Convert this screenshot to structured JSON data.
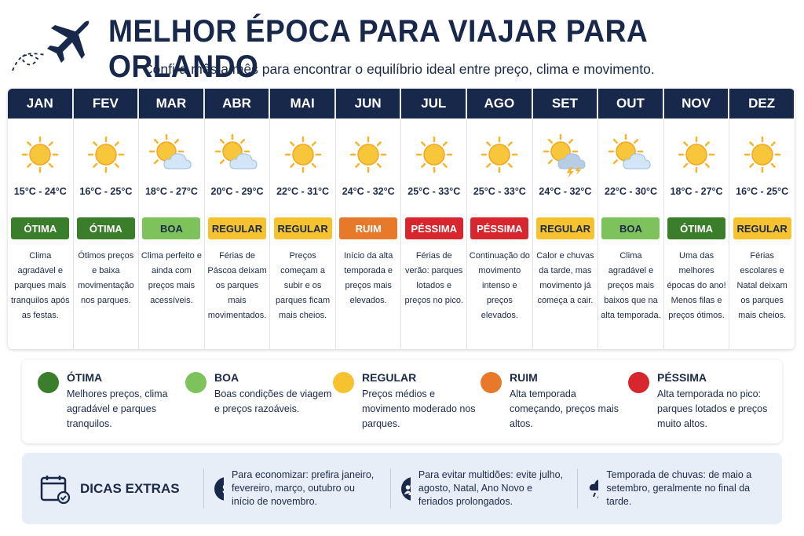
{
  "header": {
    "title": "MELHOR ÉPOCA PARA VIAJAR PARA ORLANDO",
    "subtitle": "Confira mês a mês para encontrar o equilíbrio ideal entre preço, clima e movimento."
  },
  "months": [
    {
      "month": "JAN",
      "temp": "15°C - 24°C",
      "rating": "ÓTIMA",
      "weather": "sun",
      "text": "Clima agradável e parques mais tranquilos após as festas."
    },
    {
      "month": "FEV",
      "temp": "16°C - 25°C",
      "rating": "ÓTIMA",
      "weather": "sun",
      "text": "Ótimos preços e baixa movimentação nos parques."
    },
    {
      "month": "MAR",
      "temp": "18°C - 27°C",
      "rating": "BOA",
      "weather": "sun-cloud",
      "text": "Clima perfeito e ainda com preços mais acessíveis."
    },
    {
      "month": "ABR",
      "temp": "20°C - 29°C",
      "rating": "REGULAR",
      "weather": "sun-cloud",
      "text": "Férias de Páscoa deixam os parques mais movimentados."
    },
    {
      "month": "MAI",
      "temp": "22°C - 31°C",
      "rating": "REGULAR",
      "weather": "sun",
      "text": "Preços começam a subir e os parques ficam mais cheios."
    },
    {
      "month": "JUN",
      "temp": "24°C - 32°C",
      "rating": "RUIM",
      "weather": "sun",
      "text": "Início da alta temporada e preços mais elevados."
    },
    {
      "month": "JUL",
      "temp": "25°C - 33°C",
      "rating": "PÉSSIMA",
      "weather": "sun",
      "text": "Férias de verão: parques lotados e preços no pico."
    },
    {
      "month": "AGO",
      "temp": "25°C - 33°C",
      "rating": "PÉSSIMA",
      "weather": "sun",
      "text": "Continuação do movimento intenso e preços elevados."
    },
    {
      "month": "SET",
      "temp": "24°C - 32°C",
      "rating": "REGULAR",
      "weather": "storm",
      "text": "Calor e chuvas da tarde, mas movimento já começa a cair."
    },
    {
      "month": "OUT",
      "temp": "22°C - 30°C",
      "rating": "BOA",
      "weather": "sun-cloud",
      "text": "Clima agradável e preços mais baixos que na alta temporada."
    },
    {
      "month": "NOV",
      "temp": "18°C - 27°C",
      "rating": "ÓTIMA",
      "weather": "sun",
      "text": "Uma das melhores épocas do ano! Menos filas e preços ótimos."
    },
    {
      "month": "DEZ",
      "temp": "16°C - 25°C",
      "rating": "REGULAR",
      "weather": "sun",
      "text": "Férias escolares e Natal deixam os parques mais cheios."
    }
  ],
  "legend": [
    {
      "label": "ÓTIMA",
      "color": "#3a7d2a",
      "text": "Melhores preços, clima agradável e parques tranquilos."
    },
    {
      "label": "BOA",
      "color": "#7dc25a",
      "text": "Boas condições de viagem e preços razoáveis."
    },
    {
      "label": "REGULAR",
      "color": "#f6c230",
      "text": "Preços médios e movimento moderado nos parques."
    },
    {
      "label": "RUIM",
      "color": "#e8792a",
      "text": "Alta temporada começando, preços mais altos."
    },
    {
      "label": "PÉSSIMA",
      "color": "#d8262e",
      "text": "Alta temporada no pico: parques lotados e preços muito altos."
    }
  ],
  "tips": {
    "title": "DICAS EXTRAS",
    "items": [
      "Para economizar: prefira janeiro, fevereiro, março, outubro ou início de novembro.",
      "Para evitar multidões: evite julho, agosto, Natal, Ano Novo e feriados prolongados.",
      "Temporada de chuvas: de maio a setembro, geralmente no final da tarde."
    ]
  }
}
